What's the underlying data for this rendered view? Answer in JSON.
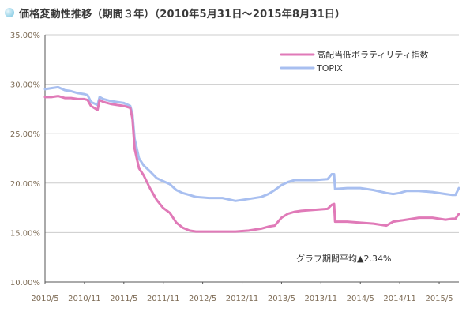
{
  "header": {
    "title": "価格変動性推移（期間３年）（2010年5月31日〜2015年8月31日）"
  },
  "colors": {
    "series_high_dividend": "#e07ab8",
    "series_topix": "#a8bff0",
    "axis": "#555555",
    "grid": "#cccccc",
    "tick_text": "#7d6b55",
    "title_dot": "#9fd6ea"
  },
  "chart_data": {
    "type": "line",
    "title": "価格変動性推移（期間３年）（2010年5月31日〜2015年8月31日）",
    "xlabel": "",
    "ylabel": "",
    "ylim": [
      10,
      35
    ],
    "y_ticks": [
      10,
      15,
      20,
      25,
      30,
      35
    ],
    "y_tick_labels": [
      "10.00%",
      "15.00%",
      "20.00%",
      "25.00%",
      "30.00%",
      "35.00%"
    ],
    "xlim": [
      "2010-05",
      "2015-08"
    ],
    "x_tick_labels": [
      "2010/5",
      "2010/11",
      "2011/5",
      "2011/11",
      "2012/5",
      "2012/11",
      "2013/5",
      "2013/11",
      "2014/5",
      "2014/11",
      "2015/5"
    ],
    "grid": true,
    "legend_position": "top-right",
    "series": [
      {
        "name": "高配当低ボラティリティ指数",
        "color": "#e07ab8",
        "points": [
          [
            "2010-05-31",
            28.7
          ],
          [
            "2010-06-30",
            28.7
          ],
          [
            "2010-07-31",
            28.8
          ],
          [
            "2010-08-31",
            28.6
          ],
          [
            "2010-09-30",
            28.6
          ],
          [
            "2010-10-31",
            28.5
          ],
          [
            "2010-11-30",
            28.5
          ],
          [
            "2010-12-15",
            28.4
          ],
          [
            "2010-12-31",
            27.8
          ],
          [
            "2011-01-31",
            27.4
          ],
          [
            "2011-02-10",
            28.4
          ],
          [
            "2011-02-28",
            28.2
          ],
          [
            "2011-03-31",
            28.0
          ],
          [
            "2011-04-30",
            27.9
          ],
          [
            "2011-05-31",
            27.8
          ],
          [
            "2011-06-30",
            27.6
          ],
          [
            "2011-07-10",
            26.5
          ],
          [
            "2011-07-20",
            23.5
          ],
          [
            "2011-08-10",
            21.5
          ],
          [
            "2011-08-31",
            20.8
          ],
          [
            "2011-09-30",
            19.5
          ],
          [
            "2011-10-31",
            18.3
          ],
          [
            "2011-11-30",
            17.5
          ],
          [
            "2011-12-31",
            17.0
          ],
          [
            "2012-01-31",
            16.0
          ],
          [
            "2012-02-29",
            15.5
          ],
          [
            "2012-03-31",
            15.2
          ],
          [
            "2012-04-30",
            15.1
          ],
          [
            "2012-06-30",
            15.1
          ],
          [
            "2012-08-31",
            15.1
          ],
          [
            "2012-10-31",
            15.1
          ],
          [
            "2012-12-31",
            15.2
          ],
          [
            "2013-02-28",
            15.4
          ],
          [
            "2013-03-31",
            15.6
          ],
          [
            "2013-04-30",
            15.7
          ],
          [
            "2013-05-31",
            16.5
          ],
          [
            "2013-06-30",
            16.9
          ],
          [
            "2013-07-31",
            17.1
          ],
          [
            "2013-08-31",
            17.2
          ],
          [
            "2013-10-31",
            17.3
          ],
          [
            "2013-12-31",
            17.4
          ],
          [
            "2014-01-20",
            17.8
          ],
          [
            "2014-01-31",
            17.9
          ],
          [
            "2014-02-05",
            16.1
          ],
          [
            "2014-03-31",
            16.1
          ],
          [
            "2014-05-31",
            16.0
          ],
          [
            "2014-07-31",
            15.9
          ],
          [
            "2014-09-30",
            15.7
          ],
          [
            "2014-10-31",
            16.1
          ],
          [
            "2014-11-30",
            16.2
          ],
          [
            "2014-12-31",
            16.3
          ],
          [
            "2015-02-28",
            16.5
          ],
          [
            "2015-04-30",
            16.5
          ],
          [
            "2015-06-30",
            16.3
          ],
          [
            "2015-07-31",
            16.4
          ],
          [
            "2015-08-15",
            16.4
          ],
          [
            "2015-08-31",
            16.9
          ]
        ]
      },
      {
        "name": "TOPIX",
        "color": "#a8bff0",
        "points": [
          [
            "2010-05-31",
            29.5
          ],
          [
            "2010-06-30",
            29.6
          ],
          [
            "2010-07-31",
            29.7
          ],
          [
            "2010-08-31",
            29.4
          ],
          [
            "2010-09-30",
            29.3
          ],
          [
            "2010-10-31",
            29.1
          ],
          [
            "2010-11-30",
            29.0
          ],
          [
            "2010-12-15",
            28.9
          ],
          [
            "2010-12-31",
            28.2
          ],
          [
            "2011-01-31",
            27.9
          ],
          [
            "2011-02-10",
            28.7
          ],
          [
            "2011-02-28",
            28.5
          ],
          [
            "2011-03-31",
            28.3
          ],
          [
            "2011-04-30",
            28.2
          ],
          [
            "2011-05-31",
            28.1
          ],
          [
            "2011-06-30",
            27.8
          ],
          [
            "2011-07-10",
            27.0
          ],
          [
            "2011-07-20",
            24.5
          ],
          [
            "2011-08-10",
            22.5
          ],
          [
            "2011-08-31",
            21.8
          ],
          [
            "2011-09-30",
            21.2
          ],
          [
            "2011-10-31",
            20.5
          ],
          [
            "2011-11-30",
            20.2
          ],
          [
            "2011-12-31",
            19.9
          ],
          [
            "2012-01-31",
            19.3
          ],
          [
            "2012-02-29",
            19.0
          ],
          [
            "2012-03-31",
            18.8
          ],
          [
            "2012-04-30",
            18.6
          ],
          [
            "2012-06-30",
            18.5
          ],
          [
            "2012-08-31",
            18.5
          ],
          [
            "2012-10-31",
            18.2
          ],
          [
            "2012-12-31",
            18.4
          ],
          [
            "2013-02-28",
            18.6
          ],
          [
            "2013-03-31",
            18.9
          ],
          [
            "2013-04-30",
            19.3
          ],
          [
            "2013-05-31",
            19.8
          ],
          [
            "2013-06-30",
            20.1
          ],
          [
            "2013-07-31",
            20.3
          ],
          [
            "2013-08-31",
            20.3
          ],
          [
            "2013-10-31",
            20.3
          ],
          [
            "2013-12-31",
            20.4
          ],
          [
            "2014-01-20",
            20.9
          ],
          [
            "2014-01-31",
            20.9
          ],
          [
            "2014-02-05",
            19.4
          ],
          [
            "2014-03-31",
            19.5
          ],
          [
            "2014-05-31",
            19.5
          ],
          [
            "2014-07-31",
            19.3
          ],
          [
            "2014-09-30",
            19.0
          ],
          [
            "2014-10-31",
            18.9
          ],
          [
            "2014-11-30",
            19.0
          ],
          [
            "2014-12-31",
            19.2
          ],
          [
            "2015-02-28",
            19.2
          ],
          [
            "2015-04-30",
            19.1
          ],
          [
            "2015-06-30",
            18.9
          ],
          [
            "2015-07-31",
            18.8
          ],
          [
            "2015-08-15",
            18.8
          ],
          [
            "2015-08-31",
            19.5
          ]
        ]
      }
    ],
    "annotations": [
      {
        "text": "グラフ期間平均▲2.34%"
      }
    ]
  }
}
